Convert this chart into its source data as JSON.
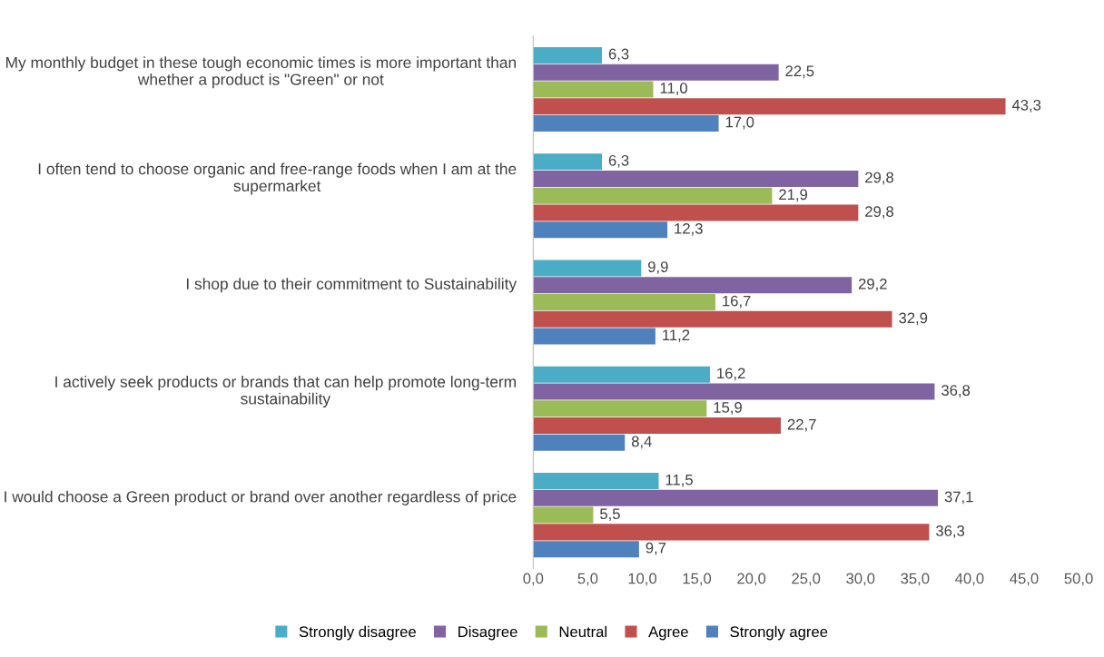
{
  "chart_data": {
    "type": "bar",
    "orientation": "horizontal",
    "categories": [
      "My monthly budget in these tough economic times is more important than whether a product is \"Green\" or not",
      "I often tend to choose organic and free-range foods when I am at the supermarket",
      "I shop due to their commitment to Sustainability",
      "I actively seek products or brands that can help promote long-term sustainability",
      "I would choose a Green product or brand over another regardless of price"
    ],
    "series": [
      {
        "name": "Strongly disagree",
        "color": "#4bacc6",
        "values": [
          6.3,
          6.3,
          9.9,
          16.2,
          11.5
        ],
        "value_labels": [
          "6,3",
          "6,3",
          "9,9",
          "16,2",
          "11,5"
        ]
      },
      {
        "name": "Disagree",
        "color": "#8064a2",
        "values": [
          22.5,
          29.8,
          29.2,
          36.8,
          37.1
        ],
        "value_labels": [
          "22,5",
          "29,8",
          "29,2",
          "36,8",
          "37,1"
        ]
      },
      {
        "name": "Neutral",
        "color": "#9bbb59",
        "values": [
          11.0,
          21.9,
          16.7,
          15.9,
          5.5
        ],
        "value_labels": [
          "11,0",
          "21,9",
          "16,7",
          "15,9",
          "5,5"
        ]
      },
      {
        "name": "Agree",
        "color": "#c0504d",
        "values": [
          43.3,
          29.8,
          32.9,
          22.7,
          36.3
        ],
        "value_labels": [
          "43,3",
          "29,8",
          "32,9",
          "22,7",
          "36,3"
        ]
      },
      {
        "name": "Strongly agree",
        "color": "#4f81bd",
        "values": [
          17.0,
          12.3,
          11.2,
          8.4,
          9.7
        ],
        "value_labels": [
          "17,0",
          "12,3",
          "11,2",
          "8,4",
          "9,7"
        ]
      }
    ],
    "xlim": [
      0,
      50
    ],
    "xticks": [
      {
        "value": 0,
        "label": "0,0"
      },
      {
        "value": 5,
        "label": "5,0"
      },
      {
        "value": 10,
        "label": "10,0"
      },
      {
        "value": 15,
        "label": "15,0"
      },
      {
        "value": 20,
        "label": "20,0"
      },
      {
        "value": 25,
        "label": "25,0"
      },
      {
        "value": 30,
        "label": "30,0"
      },
      {
        "value": 35,
        "label": "35,0"
      },
      {
        "value": 40,
        "label": "40,0"
      },
      {
        "value": 45,
        "label": "45,0"
      },
      {
        "value": 50,
        "label": "50,0"
      }
    ],
    "grid": false,
    "legend": "bottom"
  }
}
